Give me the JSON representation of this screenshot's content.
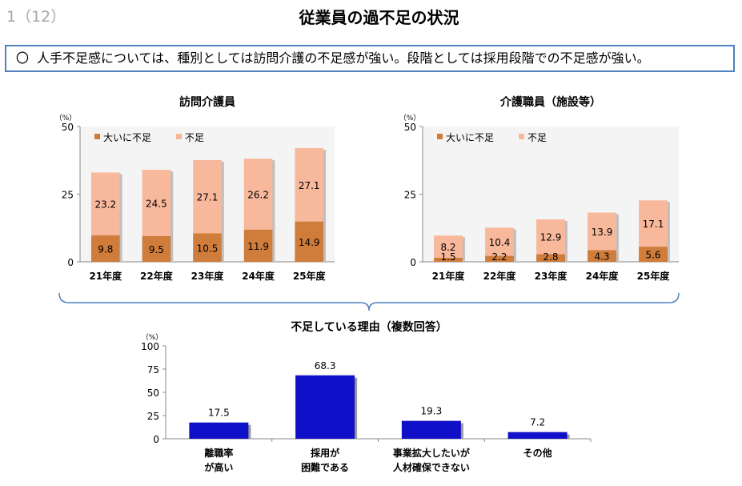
{
  "header": {
    "page_number": "1（12）",
    "title": "従業員の過不足の状況"
  },
  "summary": {
    "bullet": "〇",
    "text": "人手不足感については、種別としては訪問介護の不足感が強い。段階としては採用段階での不足感が強い。"
  },
  "colors": {
    "severe_shortage": "#d07c3a",
    "shortage": "#f8b89c",
    "reason_bar": "#1010c8",
    "summary_border": "#4f81bd",
    "brace": "#4f81bd"
  },
  "chart_data": [
    {
      "type": "bar",
      "stacked": true,
      "title": "訪問介護員",
      "unit_label": "（%）",
      "categories": [
        "21年度",
        "22年度",
        "23年度",
        "24年度",
        "25年度"
      ],
      "series": [
        {
          "name": "大いに不足",
          "values": [
            9.8,
            9.5,
            10.5,
            11.9,
            14.9
          ]
        },
        {
          "name": "不足",
          "values": [
            23.2,
            24.5,
            27.1,
            26.2,
            27.1
          ]
        }
      ],
      "ylim": [
        0,
        50
      ],
      "yticks": [
        0,
        25,
        50
      ],
      "legend": "top-left"
    },
    {
      "type": "bar",
      "stacked": true,
      "title": "介護職員（施設等）",
      "unit_label": "（%）",
      "categories": [
        "21年度",
        "22年度",
        "23年度",
        "24年度",
        "25年度"
      ],
      "series": [
        {
          "name": "大いに不足",
          "values": [
            1.5,
            2.2,
            2.8,
            4.3,
            5.6
          ]
        },
        {
          "name": "不足",
          "values": [
            8.2,
            10.4,
            12.9,
            13.9,
            17.1
          ]
        }
      ],
      "ylim": [
        0,
        50
      ],
      "yticks": [
        0,
        25,
        50
      ],
      "legend": "top-left"
    },
    {
      "type": "bar",
      "title": "不足している理由（複数回答）",
      "unit_label": "（%）",
      "categories": [
        [
          "離職率",
          "が高い"
        ],
        [
          "採用が",
          "困難である"
        ],
        [
          "事業拡大したいが",
          "人材確保できない"
        ],
        [
          "その他"
        ]
      ],
      "values": [
        17.5,
        68.3,
        19.3,
        7.2
      ],
      "ylim": [
        0,
        100
      ],
      "yticks": [
        0,
        25,
        50,
        75,
        100
      ]
    }
  ]
}
